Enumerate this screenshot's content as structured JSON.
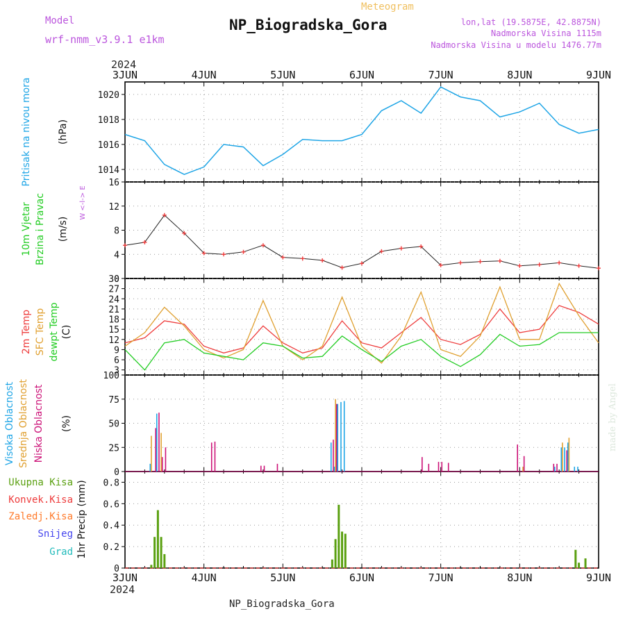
{
  "header": {
    "model_label": "Model",
    "model_name": "wrf-nmm_v3.9.1  e1km",
    "title": "NP_Biogradska_Gora",
    "subtitle": "Meteogram",
    "lonlat": "lon,lat (19.5875E, 42.8875N)",
    "altitude": "Nadmorska Visina 1115m",
    "model_altitude": "Nadmorska Visina u modelu 1476.77m",
    "year_top": "2024",
    "year_bottom": "2024",
    "footer_title": "NP_Biogradska_Gora",
    "credit": "made by Angel"
  },
  "colors": {
    "pressure": "#1ea5e6",
    "temp2m": "#ee3b3b",
    "sfc": "#e0a030",
    "dew": "#22cc22",
    "precip_total": "#5aa010",
    "precip_conv": "#ee3b3b",
    "precip_frozen": "#ff7a2a",
    "snow": "#4444ee",
    "graupel": "#22bbbb",
    "cloud_high": "#1ea5e6",
    "cloud_mid": "#e0a030",
    "cloud_low": "#cc1177",
    "wind_label": "#22cc22",
    "dir_label": "#bb55dd"
  },
  "chart_data": [
    {
      "type": "line",
      "panel": "pressure",
      "x_ticks": [
        "3JUN",
        "4JUN",
        "5JUN",
        "6JUN",
        "7JUN",
        "8JUN",
        "9JUN"
      ],
      "ylabel_a": "Pritisak na nivou mora",
      "ylabel_b": "(hPa)",
      "ylim": [
        1013,
        1021
      ],
      "yticks": [
        "1014",
        "1016",
        "1018",
        "1020"
      ],
      "x_hours": [
        0,
        6,
        12,
        18,
        24,
        30,
        36,
        42,
        48,
        54,
        60,
        66,
        72,
        78,
        84,
        90,
        96,
        102,
        108,
        114,
        120,
        126,
        132,
        138,
        144
      ],
      "values": [
        1016.8,
        1016.3,
        1014.4,
        1013.6,
        1014.2,
        1016.0,
        1015.8,
        1014.3,
        1015.2,
        1016.4,
        1016.3,
        1016.3,
        1016.8,
        1018.7,
        1019.5,
        1018.5,
        1020.6,
        1019.8,
        1019.5,
        1018.2,
        1018.6,
        1019.3,
        1017.6,
        1016.9,
        1017.2
      ],
      "grid": true
    },
    {
      "type": "scatter",
      "panel": "wind",
      "ylabel_a": "10m Vjetar",
      "ylabel_b": "Brzina i Pravac",
      "ylabel_c": "(m/s)",
      "dir_legend": "W <-l-> E",
      "ylim": [
        0,
        16
      ],
      "yticks": [
        "0",
        "4",
        "8",
        "12",
        "16"
      ],
      "x_hours": [
        0,
        6,
        12,
        18,
        24,
        30,
        36,
        42,
        48,
        54,
        60,
        66,
        72,
        78,
        84,
        90,
        96,
        102,
        108,
        114,
        120,
        126,
        132,
        138,
        144
      ],
      "speed": [
        5.5,
        6.0,
        10.5,
        7.5,
        4.2,
        4.0,
        4.4,
        5.5,
        3.5,
        3.3,
        3.0,
        1.8,
        2.5,
        4.5,
        5.0,
        5.3,
        2.2,
        2.6,
        2.8,
        2.9,
        2.1,
        2.3,
        2.6,
        2.1,
        1.7
      ],
      "grid": true
    },
    {
      "type": "line",
      "panel": "temperature",
      "ylabel_a": "2m Temp",
      "ylabel_b": "SFC Temp",
      "ylabel_c": "dewpt Temp",
      "ylabel_d": "(C)",
      "ylim": [
        1.5,
        30
      ],
      "yticks": [
        "3",
        "6",
        "9",
        "12",
        "15",
        "18",
        "21",
        "24",
        "27",
        "30"
      ],
      "x_hours": [
        0,
        6,
        12,
        18,
        24,
        30,
        36,
        42,
        48,
        54,
        60,
        66,
        72,
        78,
        84,
        90,
        96,
        102,
        108,
        114,
        120,
        126,
        132,
        138,
        144
      ],
      "series": [
        {
          "name": "2m Temp",
          "values": [
            11,
            12.5,
            17.5,
            16.5,
            10,
            8,
            9.5,
            16,
            11,
            8,
            9.5,
            17.5,
            11,
            9.5,
            14,
            18.5,
            12,
            10.5,
            13.5,
            21,
            14,
            15,
            22,
            20,
            16.5
          ]
        },
        {
          "name": "SFC Temp",
          "values": [
            10,
            14,
            21.5,
            16,
            9,
            6.5,
            9,
            23.5,
            10,
            6,
            10,
            24.5,
            10,
            5,
            13,
            26,
            9,
            7,
            13,
            27.5,
            12,
            12,
            28.5,
            19,
            11
          ]
        },
        {
          "name": "dewpt Temp",
          "values": [
            9,
            3,
            11,
            12,
            8,
            7,
            6,
            11,
            10,
            6.5,
            7,
            13,
            9,
            5.5,
            10,
            12,
            7,
            4,
            7.5,
            13.5,
            10,
            10.5,
            14,
            14,
            14
          ]
        }
      ],
      "grid": true
    },
    {
      "type": "bar",
      "panel": "clouds",
      "ylabel_a": "Visoka Oblacnost",
      "ylabel_b": "Srednja Oblacnost",
      "ylabel_c": "Niska Oblacnost",
      "ylabel_d": "(%)",
      "ylim": [
        0,
        100
      ],
      "yticks": [
        "0",
        "25",
        "50",
        "75",
        "100"
      ],
      "x_hours": [
        8,
        9,
        10,
        11,
        12,
        15,
        26,
        27,
        41,
        42,
        46,
        63,
        64,
        65,
        66,
        67,
        68,
        90,
        92,
        95,
        96,
        98,
        100,
        103,
        119,
        121,
        128,
        130,
        131,
        133,
        134,
        135,
        136,
        137,
        138
      ],
      "series": [
        {
          "name": "Visoka Oblacnost",
          "values": [
            8,
            0,
            60,
            0,
            0,
            0,
            0,
            0,
            0,
            0,
            0,
            30,
            5,
            70,
            72,
            73,
            0,
            0,
            0,
            0,
            0,
            0,
            0,
            0,
            0,
            0,
            0,
            0,
            5,
            25,
            25,
            30,
            0,
            5,
            5
          ]
        },
        {
          "name": "Srednja Oblacnost",
          "values": [
            37,
            0,
            0,
            40,
            0,
            0,
            0,
            0,
            0,
            0,
            0,
            0,
            75,
            0,
            0,
            0,
            0,
            0,
            0,
            0,
            0,
            0,
            0,
            0,
            0,
            5,
            0,
            0,
            0,
            30,
            0,
            35,
            0,
            0,
            0
          ]
        },
        {
          "name": "Niska Oblacnost",
          "values": [
            0,
            45,
            61,
            15,
            25,
            0,
            30,
            31,
            6,
            6,
            8,
            33,
            70,
            0,
            0,
            0,
            0,
            15,
            8,
            10,
            10,
            9,
            0,
            0,
            28,
            16,
            0,
            8,
            8,
            0,
            22,
            0,
            0,
            0,
            0
          ]
        }
      ],
      "grid": true
    },
    {
      "type": "bar",
      "panel": "precipitation",
      "legend": [
        "Ukupna Kisa",
        "Konvek.Kisa",
        "Zaledj.Kisa",
        "Snijeg",
        "Grad"
      ],
      "ylabel": "1hr Precip (mm)",
      "ylim": [
        0,
        0.9
      ],
      "yticks": [
        "0",
        "0.2",
        "0.4",
        "0.6",
        "0.8"
      ],
      "x_hours": [
        8,
        9,
        10,
        11,
        12,
        63,
        64,
        65,
        66,
        67,
        68,
        137,
        138,
        140
      ],
      "values": [
        0.03,
        0.29,
        0.54,
        0.29,
        0.13,
        0.08,
        0.27,
        0.59,
        0.34,
        0.32,
        0.0,
        0.17,
        0.05,
        0.09
      ],
      "grid": true
    }
  ]
}
